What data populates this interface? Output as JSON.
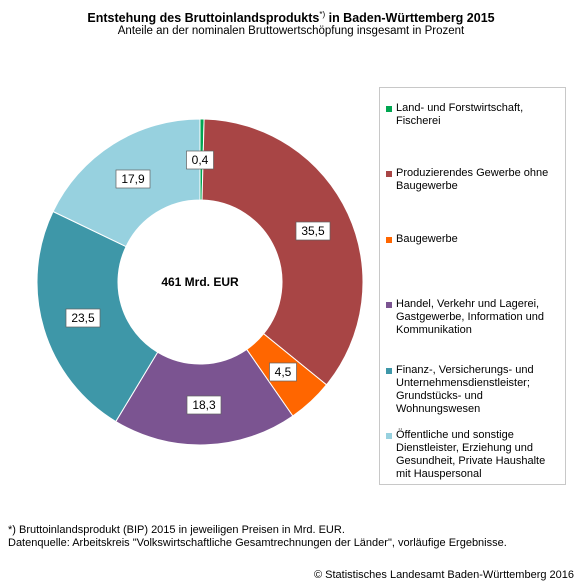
{
  "header": {
    "title": "Entstehung des Bruttoinlandsprodukts",
    "title_sup": "*)",
    "title_suffix": " in Baden-Württemberg 2015",
    "subtitle": "Anteile an der nominalen Bruttowertschöpfung insgesamt in Prozent"
  },
  "chart_data": {
    "type": "pie",
    "donut": true,
    "center_label": "461 Mrd. EUR",
    "legend_position": "right",
    "slices": [
      {
        "name": "Land- und Forstwirtschaft, Fischerei",
        "value": 0.4,
        "label": "0,4",
        "color": "#00a651"
      },
      {
        "name": "Produzierendes Gewerbe ohne Baugewerbe",
        "value": 35.5,
        "label": "35,5",
        "color": "#a84545"
      },
      {
        "name": "Baugewerbe",
        "value": 4.5,
        "label": "4,5",
        "color": "#ff6600"
      },
      {
        "name": "Handel, Verkehr und Lagerei, Gastgewerbe, Information und Kommunikation",
        "value": 18.3,
        "label": "18,3",
        "color": "#7b5491"
      },
      {
        "name": "Finanz-, Versicherungs- und Unternehmensdienstleister; Grundstücks- und Wohnungswesen",
        "value": 23.5,
        "label": "23,5",
        "color": "#3e97a8"
      },
      {
        "name": "Öffentliche und sonstige Dienstleister, Erziehung und Gesundheit, Private Haushalte mit Hauspersonal",
        "value": 17.9,
        "label": "17,9",
        "color": "#97d1df"
      }
    ]
  },
  "footnote": {
    "line1": "*) Bruttoinlandsprodukt (BIP) 2015 in jeweiligen Preisen in Mrd. EUR.",
    "line2": "Datenquelle: Arbeitskreis \"Volkswirtschaftliche Gesamtrechnungen der Länder\", vorläufige Ergebnisse."
  },
  "copyright": "© Statistisches Landesamt Baden-Württemberg 2016"
}
